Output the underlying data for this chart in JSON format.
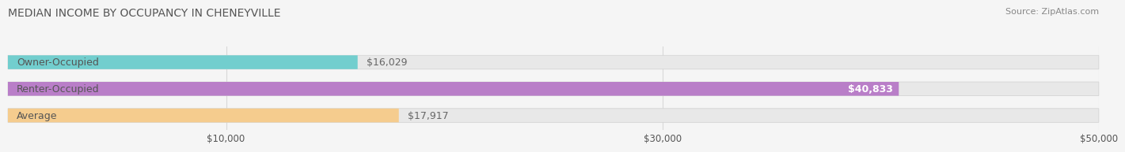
{
  "title": "MEDIAN INCOME BY OCCUPANCY IN CHENEYVILLE",
  "source": "Source: ZipAtlas.com",
  "categories": [
    "Owner-Occupied",
    "Renter-Occupied",
    "Average"
  ],
  "values": [
    16029,
    40833,
    17917
  ],
  "bar_colors": [
    "#72cece",
    "#b97ec8",
    "#f5cc8e"
  ],
  "bar_bg_color": "#e8e8e8",
  "bar_border_color": "#d0d0d0",
  "value_labels": [
    "$16,029",
    "$40,833",
    "$17,917"
  ],
  "xlim": [
    0,
    50000
  ],
  "xticks": [
    10000,
    30000,
    50000
  ],
  "xticklabels": [
    "$10,000",
    "$30,000",
    "$50,000"
  ],
  "title_fontsize": 10,
  "label_fontsize": 9,
  "source_fontsize": 8,
  "bar_height": 0.52,
  "background_color": "#f5f5f5",
  "title_color": "#555555",
  "source_color": "#888888",
  "label_color": "#555555",
  "value_color_inside": "#ffffff",
  "value_color_outside": "#666666",
  "grid_color": "#d8d8d8"
}
